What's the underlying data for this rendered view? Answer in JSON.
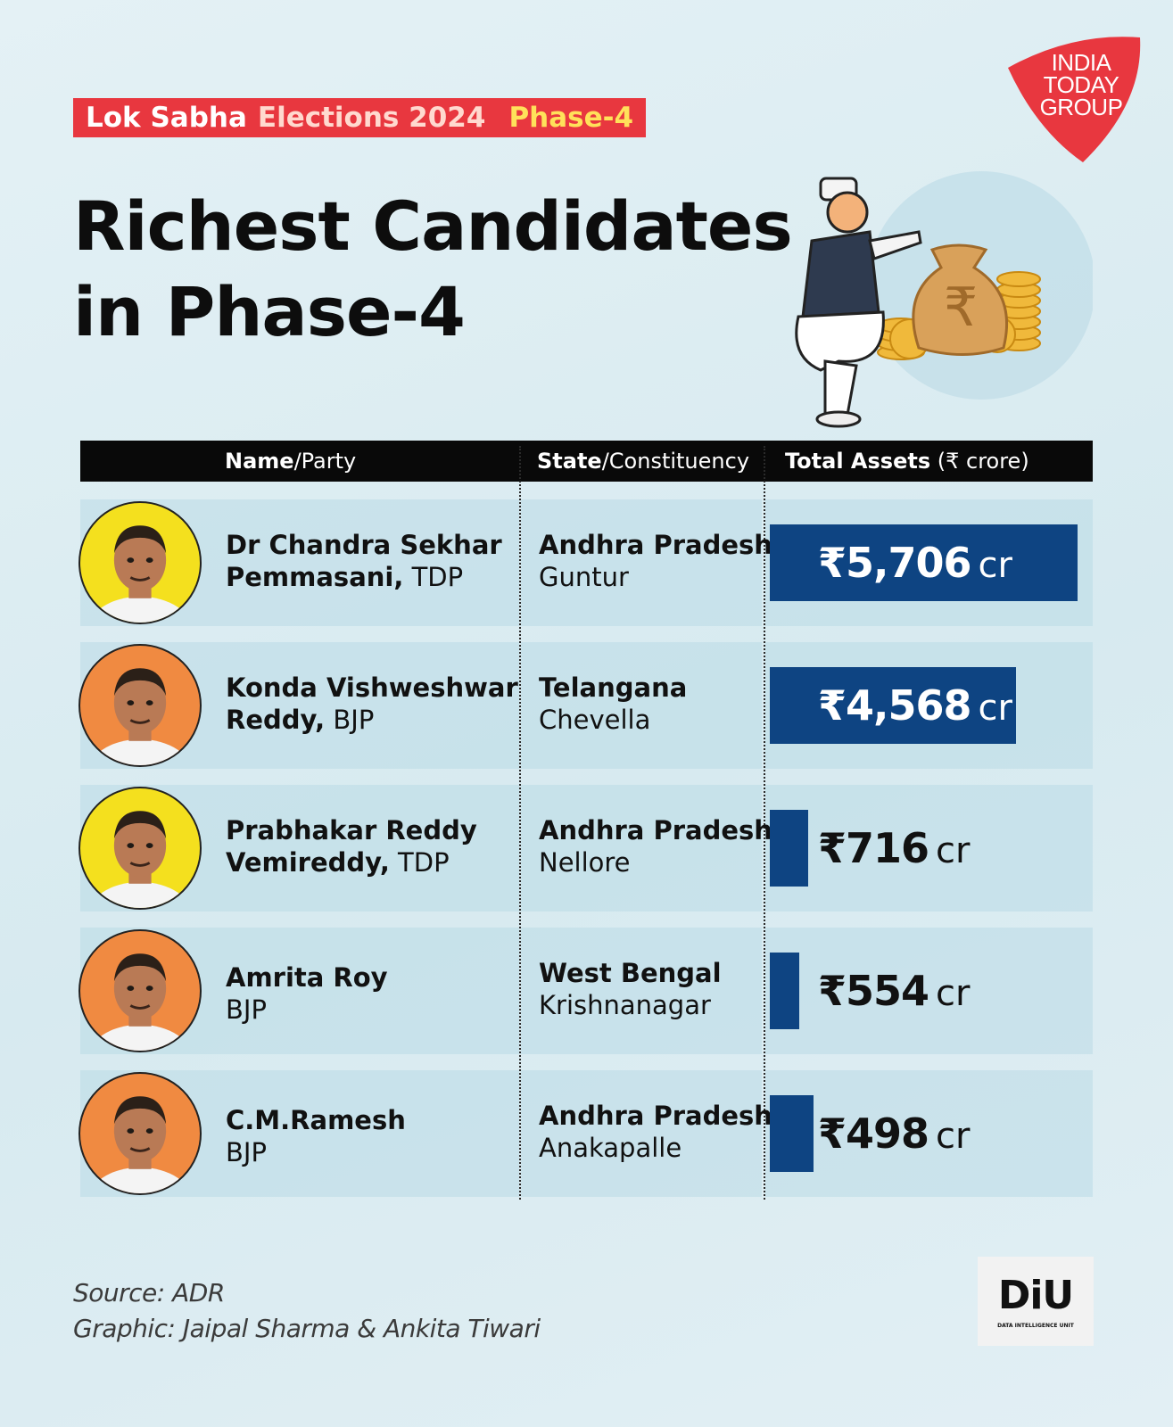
{
  "header": {
    "kicker_part1": "Lok Sabha",
    "kicker_part2": "Elections 2024",
    "kicker_part3": "Phase-4",
    "title_line1": "Richest Candidates",
    "title_line2": "in Phase-4",
    "logo_text": [
      "INDIA",
      "TODAY",
      "GROUP"
    ]
  },
  "colors": {
    "accent_red": "#e8373f",
    "bar_blue": "#0e4482",
    "kicker_yellow": "#ffe15a"
  },
  "table_header": {
    "col1_bold": "Name",
    "col1_light": "/Party",
    "col2_bold": "State",
    "col2_light": "/Constituency",
    "col3_bold": "Total Assets",
    "col3_light": " (₹ crore)"
  },
  "chart_data": {
    "type": "bar",
    "orientation": "horizontal",
    "categories": [
      "Dr Chandra Sekhar Pemmasani",
      "Konda Vishweshwar Reddy",
      "Prabhakar Reddy Vemireddy",
      "Amrita Roy",
      "C.M.Ramesh"
    ],
    "values": [
      5706,
      4568,
      716,
      554,
      498
    ],
    "value_labels": [
      "₹5,706",
      "₹4,568",
      "₹716",
      "₹554",
      "₹498"
    ],
    "unit_label": "cr",
    "max": 5706
  },
  "rows": [
    {
      "name": "Dr Chandra Sekhar",
      "name2": "Pemmasani,",
      "party": " TDP",
      "state": "Andhra Pradesh",
      "constituency": "Guntur",
      "avatar_bg": "#f4e01e",
      "avatar_icon": "person-photo"
    },
    {
      "name": "Konda Vishweshwar",
      "name2": "Reddy,",
      "party": " BJP",
      "state": "Telangana",
      "constituency": "Chevella",
      "avatar_bg": "#f08a41",
      "avatar_icon": "person-photo"
    },
    {
      "name": "Prabhakar Reddy",
      "name2": "Vemireddy,",
      "party": " TDP",
      "state": "Andhra Pradesh",
      "constituency": "Nellore",
      "avatar_bg": "#f4e01e",
      "avatar_icon": "person-photo"
    },
    {
      "name": "Amrita Roy",
      "name2": "",
      "party": "BJP",
      "state": "West Bengal",
      "constituency": "Krishnanagar",
      "avatar_bg": "#f08a41",
      "avatar_icon": "person-photo"
    },
    {
      "name": "C.M.Ramesh",
      "name2": "",
      "party": "BJP",
      "state": "Andhra Pradesh",
      "constituency": "Anakapalle",
      "avatar_bg": "#f08a41",
      "avatar_icon": "person-photo"
    }
  ],
  "footer": {
    "source": "Source: ADR",
    "graphic": "Graphic: Jaipal Sharma & Ankita Tiwari",
    "diu_logo": "DiU",
    "diu_sub": "DATA INTELLIGENCE UNIT"
  }
}
